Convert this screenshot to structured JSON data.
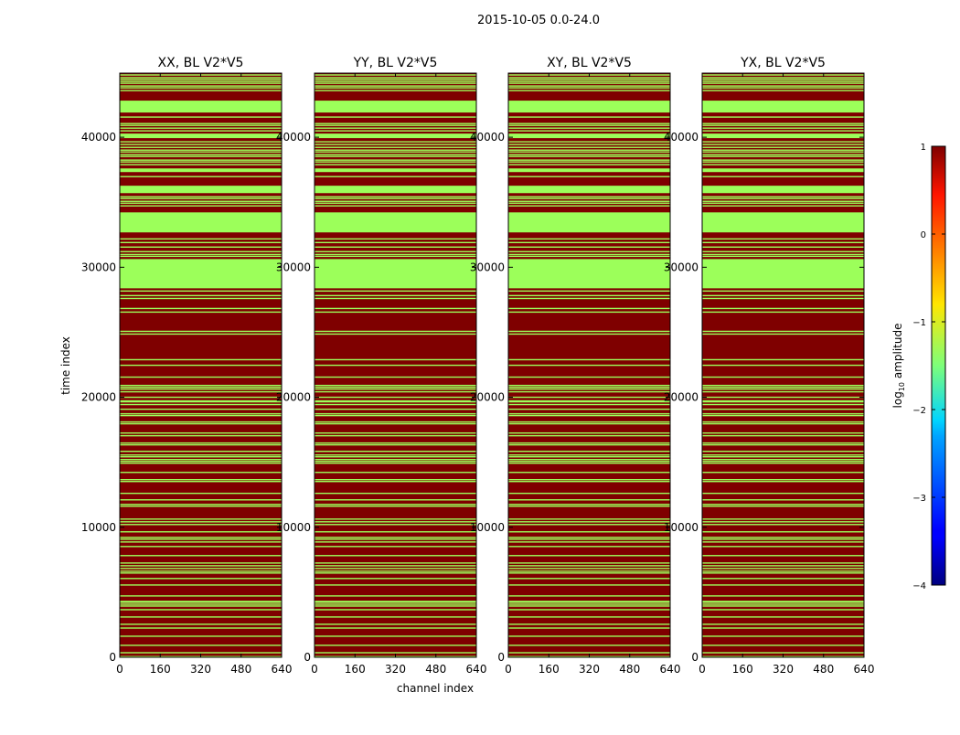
{
  "chart_data": {
    "type": "heatmap",
    "suptitle": "2015-10-05 0.0-24.0",
    "xlabel": "channel index",
    "ylabel": "time index",
    "xlim": [
      0,
      640
    ],
    "ylim": [
      0,
      44930
    ],
    "xticks": [
      "0",
      "160",
      "320",
      "480",
      "640"
    ],
    "xtick_values": [
      0,
      160,
      320,
      480,
      640
    ],
    "yticks": [
      "0",
      "10000",
      "20000",
      "30000",
      "40000"
    ],
    "ytick_values": [
      0,
      10000,
      20000,
      30000,
      40000
    ],
    "panels": [
      {
        "title": "XX, BL V2*V5"
      },
      {
        "title": "YY, BL V2*V5"
      },
      {
        "title": "XY, BL V2*V5"
      },
      {
        "title": "YX, BL V2*V5"
      }
    ],
    "background_value": 1.0,
    "flagged_value": -1.3,
    "green_bands": [
      [
        41900,
        42815
      ],
      [
        39930,
        40280
      ],
      [
        37320,
        37600
      ],
      [
        35700,
        36270
      ],
      [
        32680,
        34220
      ],
      [
        28380,
        30630
      ]
    ],
    "green_lines": [
      44790,
      44580,
      44440,
      44290,
      44150,
      43940,
      43800,
      43590,
      41550,
      41050,
      40910,
      40700,
      40490,
      39650,
      39440,
      39220,
      39010,
      38870,
      38660,
      38520,
      38240,
      38100,
      37890,
      36970,
      35420,
      35280,
      35070,
      34930,
      34720,
      32180,
      31900,
      31550,
      31200,
      30980,
      30840,
      28170,
      27820,
      27600,
      26830,
      26550,
      25070,
      24860,
      22890,
      22460,
      21550,
      20910,
      20770,
      20630,
      20420,
      20000,
      19720,
      19650,
      19440,
      19080,
      18730,
      18590,
      18100,
      17960,
      17250,
      17040,
      16480,
      16340,
      15840,
      15560,
      15420,
      15210,
      15070,
      14930,
      14220,
      13660,
      13520,
      12610,
      12110,
      11760,
      11620,
      10630,
      10420,
      10210,
      9650,
      9220,
      9080,
      8870,
      8520,
      7820,
      7250,
      7040,
      6830,
      6620,
      6480,
      6060,
      5560,
      4720,
      4300,
      4230,
      4080,
      3940,
      3660,
      3100,
      2540,
      2250,
      1620,
      920,
      350,
      0
    ],
    "colorbar": {
      "label": "log10 amplitude",
      "label_main": "log",
      "label_sub": "10",
      "label_rest": " amplitude",
      "range": [
        -4,
        1
      ],
      "ticks": [
        "1",
        "0",
        "−1",
        "−2",
        "−3",
        "−4"
      ],
      "tick_values": [
        1,
        0,
        -1,
        -2,
        -3,
        -4
      ]
    },
    "colors": {
      "high": "#7f0000",
      "flagged": "#9cff5a",
      "frame": "#000000"
    }
  }
}
